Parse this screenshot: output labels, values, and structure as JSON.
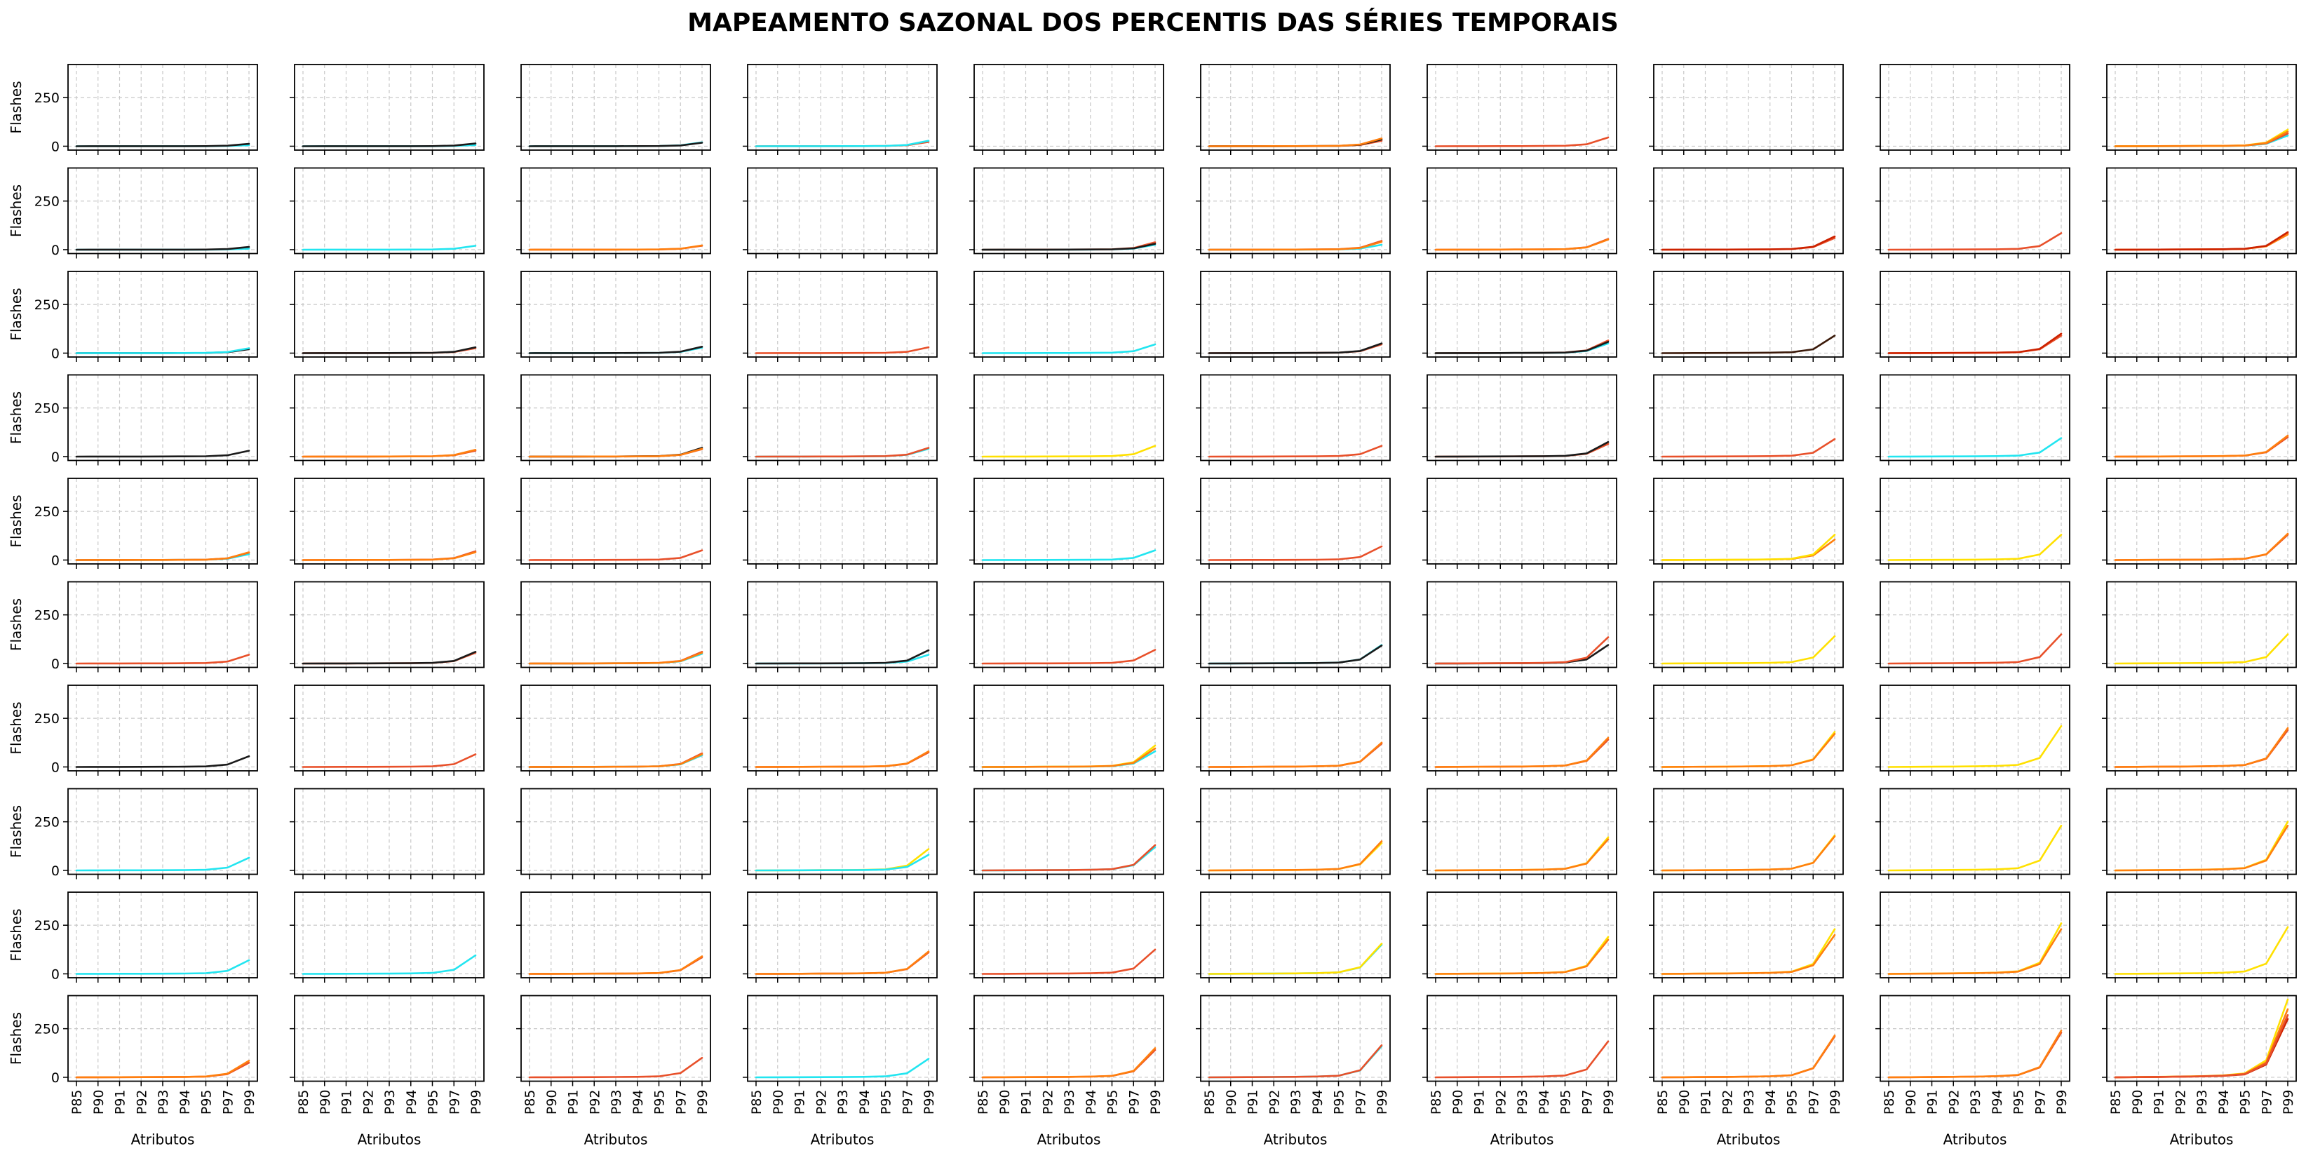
{
  "chart_data": {
    "type": "line",
    "title": "MAPEAMENTO SAZONAL DOS PERCENTIS DAS SÉRIES TEMPORAIS",
    "xlabel": "Atributos",
    "ylabel": "Flashes",
    "categories": [
      "P85",
      "P90",
      "P91",
      "P92",
      "P93",
      "P94",
      "P95",
      "P97",
      "P99"
    ],
    "yticks": [
      0,
      250
    ],
    "ylim": [
      -20,
      420
    ],
    "grid": true,
    "rows": 10,
    "cols": 10,
    "colors": {
      "black": "#1a1a1a",
      "cyan": "#22e5f0",
      "red": "#e8502a",
      "orange": "#ff7f0e",
      "yellow": "#ffe000",
      "deepred": "#cc2200",
      "darkbrown": "#3b1a0a"
    },
    "panels": [
      [
        [
          {
            "c": "cyan",
            "p99": 5
          },
          {
            "c": "black",
            "p99": 12
          }
        ],
        [
          {
            "c": "cyan",
            "p99": 6
          },
          {
            "c": "black",
            "p99": 14
          }
        ],
        [
          {
            "c": "cyan",
            "p99": 20
          },
          {
            "c": "black",
            "p99": 18
          }
        ],
        [
          {
            "c": "red",
            "p99": 22
          },
          {
            "c": "cyan",
            "p99": 28
          }
        ],
        [],
        [
          {
            "c": "red",
            "p99": 28
          },
          {
            "c": "black",
            "p99": 35
          },
          {
            "c": "orange",
            "p99": 40
          }
        ],
        [
          {
            "c": "red",
            "p99": 45
          }
        ],
        [],
        [],
        [
          {
            "c": "cyan",
            "p99": 55
          },
          {
            "c": "red",
            "p99": 65
          },
          {
            "c": "yellow",
            "p99": 85
          },
          {
            "c": "orange",
            "p99": 75
          }
        ]
      ],
      [
        [
          {
            "c": "cyan",
            "p99": 5
          },
          {
            "c": "black",
            "p99": 14
          }
        ],
        [
          {
            "c": "cyan",
            "p99": 20
          }
        ],
        [
          {
            "c": "red",
            "p99": 20
          },
          {
            "c": "orange",
            "p99": 22
          }
        ],
        [],
        [
          {
            "c": "cyan",
            "p99": 25
          },
          {
            "c": "red",
            "p99": 38
          },
          {
            "c": "black",
            "p99": 30
          }
        ],
        [
          {
            "c": "cyan",
            "p99": 25
          },
          {
            "c": "red",
            "p99": 45
          },
          {
            "c": "orange",
            "p99": 40
          }
        ],
        [
          {
            "c": "red",
            "p99": 55
          },
          {
            "c": "orange",
            "p99": 52
          }
        ],
        [
          {
            "c": "red",
            "p99": 60
          },
          {
            "c": "deepred",
            "p99": 68
          }
        ],
        [
          {
            "c": "red",
            "p99": 85
          }
        ],
        [
          {
            "c": "red",
            "p99": 85
          },
          {
            "c": "orange",
            "p99": 78
          },
          {
            "c": "deepred",
            "p99": 90
          }
        ]
      ],
      [
        [
          {
            "c": "black",
            "p99": 20
          },
          {
            "c": "cyan",
            "p99": 25
          }
        ],
        [
          {
            "c": "red",
            "p99": 25
          },
          {
            "c": "black",
            "p99": 30
          }
        ],
        [
          {
            "c": "cyan",
            "p99": 28
          },
          {
            "c": "black",
            "p99": 33
          }
        ],
        [
          {
            "c": "red",
            "p99": 30
          }
        ],
        [
          {
            "c": "cyan",
            "p99": 45
          }
        ],
        [
          {
            "c": "red",
            "p99": 45
          },
          {
            "c": "black",
            "p99": 50
          }
        ],
        [
          {
            "c": "cyan",
            "p99": 50
          },
          {
            "c": "red",
            "p99": 65
          },
          {
            "c": "black",
            "p99": 58
          }
        ],
        [
          {
            "c": "darkbrown",
            "p99": 90
          }
        ],
        [
          {
            "c": "red",
            "p99": 90
          },
          {
            "c": "deepred",
            "p99": 100
          }
        ],
        []
      ],
      [
        [
          {
            "c": "black",
            "p99": 30
          }
        ],
        [
          {
            "c": "red",
            "p99": 30
          },
          {
            "c": "orange",
            "p99": 35
          }
        ],
        [
          {
            "c": "red",
            "p99": 38
          },
          {
            "c": "black",
            "p99": 45
          },
          {
            "c": "orange",
            "p99": 40
          }
        ],
        [
          {
            "c": "cyan",
            "p99": 40
          },
          {
            "c": "red",
            "p99": 45
          }
        ],
        [
          {
            "c": "yellow",
            "p99": 55
          }
        ],
        [
          {
            "c": "red",
            "p99": 55
          }
        ],
        [
          {
            "c": "red",
            "p99": 65
          },
          {
            "c": "black",
            "p99": 75
          }
        ],
        [
          {
            "c": "red",
            "p99": 90
          }
        ],
        [
          {
            "c": "cyan",
            "p99": 95
          }
        ],
        [
          {
            "c": "red",
            "p99": 100
          },
          {
            "c": "orange",
            "p99": 108
          }
        ]
      ],
      [
        [
          {
            "c": "cyan",
            "p99": 30
          },
          {
            "c": "red",
            "p99": 38
          },
          {
            "c": "orange",
            "p99": 40
          }
        ],
        [
          {
            "c": "red",
            "p99": 45
          },
          {
            "c": "orange",
            "p99": 40
          }
        ],
        [
          {
            "c": "red",
            "p99": 50
          }
        ],
        [],
        [
          {
            "c": "cyan",
            "p99": 50
          }
        ],
        [
          {
            "c": "red",
            "p99": 70
          }
        ],
        [],
        [
          {
            "c": "orange",
            "p99": 105
          },
          {
            "c": "yellow",
            "p99": 130
          }
        ],
        [
          {
            "c": "yellow",
            "p99": 130
          }
        ],
        [
          {
            "c": "red",
            "p99": 130
          },
          {
            "c": "orange",
            "p99": 135
          }
        ]
      ],
      [
        [
          {
            "c": "red",
            "p99": 45
          }
        ],
        [
          {
            "c": "red",
            "p99": 55
          },
          {
            "c": "black",
            "p99": 60
          }
        ],
        [
          {
            "c": "cyan",
            "p99": 50
          },
          {
            "c": "red",
            "p99": 60
          },
          {
            "c": "orange",
            "p99": 55
          }
        ],
        [
          {
            "c": "cyan",
            "p99": 45
          },
          {
            "c": "black",
            "p99": 68
          }
        ],
        [
          {
            "c": "red",
            "p99": 70
          }
        ],
        [
          {
            "c": "cyan",
            "p99": 95
          },
          {
            "c": "black",
            "p99": 92
          }
        ],
        [
          {
            "c": "black",
            "p99": 95
          },
          {
            "c": "red",
            "p99": 135
          }
        ],
        [
          {
            "c": "yellow",
            "p99": 140
          }
        ],
        [
          {
            "c": "red",
            "p99": 150
          }
        ],
        [
          {
            "c": "yellow",
            "p99": 150
          }
        ]
      ],
      [
        [
          {
            "c": "black",
            "p99": 55
          }
        ],
        [
          {
            "c": "red",
            "p99": 65
          }
        ],
        [
          {
            "c": "cyan",
            "p99": 60
          },
          {
            "c": "red",
            "p99": 70
          },
          {
            "c": "orange",
            "p99": 65
          }
        ],
        [
          {
            "c": "red",
            "p99": 75
          },
          {
            "c": "orange",
            "p99": 80
          }
        ],
        [
          {
            "c": "cyan",
            "p99": 80
          },
          {
            "c": "yellow",
            "p99": 110
          },
          {
            "c": "orange",
            "p99": 95
          }
        ],
        [
          {
            "c": "red",
            "p99": 120
          },
          {
            "c": "orange",
            "p99": 125
          }
        ],
        [
          {
            "c": "red",
            "p99": 140
          },
          {
            "c": "orange",
            "p99": 150
          }
        ],
        [
          {
            "c": "yellow",
            "p99": 180
          },
          {
            "c": "orange",
            "p99": 170
          }
        ],
        [
          {
            "c": "yellow",
            "p99": 210
          }
        ],
        [
          {
            "c": "red",
            "p99": 190
          },
          {
            "c": "orange",
            "p99": 200
          }
        ]
      ],
      [
        [
          {
            "c": "cyan",
            "p99": 65
          }
        ],
        [],
        [],
        [
          {
            "c": "yellow",
            "p99": 110
          },
          {
            "c": "cyan",
            "p99": 80
          }
        ],
        [
          {
            "c": "cyan",
            "p99": 120
          },
          {
            "c": "red",
            "p99": 130
          }
        ],
        [
          {
            "c": "yellow",
            "p99": 140
          },
          {
            "c": "orange",
            "p99": 150
          }
        ],
        [
          {
            "c": "yellow",
            "p99": 170
          },
          {
            "c": "orange",
            "p99": 160
          }
        ],
        [
          {
            "c": "yellow",
            "p99": 180
          },
          {
            "c": "orange",
            "p99": 175
          }
        ],
        [
          {
            "c": "yellow",
            "p99": 230
          }
        ],
        [
          {
            "c": "yellow",
            "p99": 250
          },
          {
            "c": "orange",
            "p99": 230
          }
        ]
      ],
      [
        [
          {
            "c": "cyan",
            "p99": 70
          }
        ],
        [
          {
            "c": "cyan",
            "p99": 95
          }
        ],
        [
          {
            "c": "red",
            "p99": 85
          },
          {
            "c": "orange",
            "p99": 90
          }
        ],
        [
          {
            "c": "red",
            "p99": 110
          },
          {
            "c": "orange",
            "p99": 115
          }
        ],
        [
          {
            "c": "red",
            "p99": 125
          }
        ],
        [
          {
            "c": "cyan",
            "p99": 150
          },
          {
            "c": "yellow",
            "p99": 155
          }
        ],
        [
          {
            "c": "yellow",
            "p99": 190
          },
          {
            "c": "orange",
            "p99": 175
          }
        ],
        [
          {
            "c": "yellow",
            "p99": 230
          },
          {
            "c": "orange",
            "p99": 200
          }
        ],
        [
          {
            "c": "yellow",
            "p99": 260
          },
          {
            "c": "orange",
            "p99": 230
          }
        ],
        [
          {
            "c": "yellow",
            "p99": 240
          }
        ]
      ],
      [
        [
          {
            "c": "red",
            "p99": 75
          },
          {
            "c": "orange",
            "p99": 85
          }
        ],
        [],
        [
          {
            "c": "red",
            "p99": 100
          }
        ],
        [
          {
            "c": "cyan",
            "p99": 95
          }
        ],
        [
          {
            "c": "red",
            "p99": 140
          },
          {
            "c": "orange",
            "p99": 150
          }
        ],
        [
          {
            "c": "cyan",
            "p99": 160
          },
          {
            "c": "red",
            "p99": 165
          }
        ],
        [
          {
            "c": "red",
            "p99": 185
          }
        ],
        [
          {
            "c": "red",
            "p99": 210
          },
          {
            "c": "orange",
            "p99": 215
          }
        ],
        [
          {
            "c": "red",
            "p99": 230
          },
          {
            "c": "orange",
            "p99": 240
          }
        ],
        [
          {
            "c": "yellow",
            "p99": 400
          },
          {
            "c": "orange",
            "p99": 350
          },
          {
            "c": "deepred",
            "p99": 300
          },
          {
            "c": "red",
            "p99": 320
          }
        ]
      ]
    ]
  }
}
